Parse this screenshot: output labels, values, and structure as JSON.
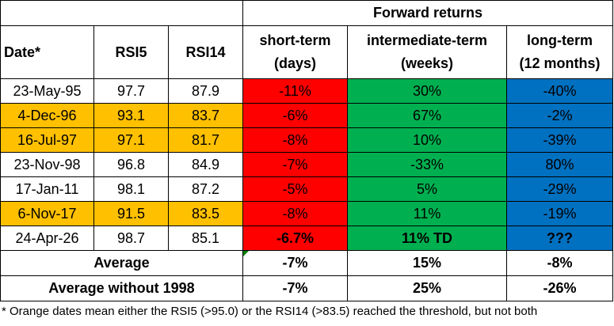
{
  "header": {
    "forward_returns": "Forward returns",
    "date": "Date*",
    "rsi5": "RSI5",
    "rsi14": "RSI14",
    "short_line1": "short-term",
    "short_line2": "(days)",
    "mid_line1": "intermediate-term",
    "mid_line2": "(weeks)",
    "long_line1": "long-term",
    "long_line2": "(12 months)"
  },
  "rows": [
    {
      "date": "23-May-95",
      "rsi5": "97.7",
      "rsi14": "87.9",
      "short": "-11%",
      "mid": "30%",
      "long": "-40%",
      "highlight": false
    },
    {
      "date": "4-Dec-96",
      "rsi5": "93.1",
      "rsi14": "83.7",
      "short": "-6%",
      "mid": "67%",
      "long": "-2%",
      "highlight": true
    },
    {
      "date": "16-Jul-97",
      "rsi5": "97.1",
      "rsi14": "81.7",
      "short": "-8%",
      "mid": "10%",
      "long": "-39%",
      "highlight": true
    },
    {
      "date": "23-Nov-98",
      "rsi5": "96.8",
      "rsi14": "84.9",
      "short": "-7%",
      "mid": "-33%",
      "long": "80%",
      "highlight": false
    },
    {
      "date": "17-Jan-11",
      "rsi5": "98.1",
      "rsi14": "87.2",
      "short": "-5%",
      "mid": "5%",
      "long": "-29%",
      "highlight": false
    },
    {
      "date": "6-Nov-17",
      "rsi5": "91.5",
      "rsi14": "83.5",
      "short": "-8%",
      "mid": "11%",
      "long": "-19%",
      "highlight": true
    },
    {
      "date": "24-Apr-26",
      "rsi5": "98.7",
      "rsi14": "85.1",
      "short": "-6.7%",
      "mid": "11% TD",
      "long": "???",
      "highlight": false
    }
  ],
  "average": {
    "label": "Average",
    "short": "-7%",
    "mid": "15%",
    "long": "-8%"
  },
  "average_ex": {
    "label": "Average without 1998",
    "short": "-7%",
    "mid": "25%",
    "long": "-26%"
  },
  "footnote": "* Orange dates mean either the RSI5 (>95.0) or the RSI14 (>83.5) reached the threshold, but not both",
  "colors": {
    "short": "#ff0000",
    "intermediate": "#00b050",
    "long": "#0070c0",
    "highlight": "#ffc000",
    "current_text": "#ffff00"
  }
}
